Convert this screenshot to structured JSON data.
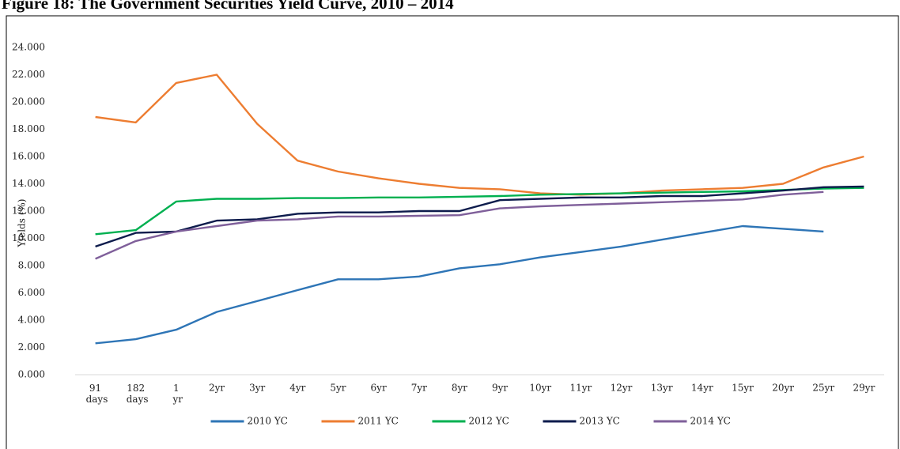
{
  "chart_data": {
    "type": "line",
    "title": "Figure 18: The Government Securities Yield Curve, 2010 – 2014",
    "y_label": "Yields (%)",
    "categories": [
      "91 days",
      "182 days",
      "1 yr",
      "2yr",
      "3yr",
      "4yr",
      "5yr",
      "6yr",
      "7yr",
      "8yr",
      "9yr",
      "10yr",
      "11yr",
      "12yr",
      "13yr",
      "14yr",
      "15yr",
      "20yr",
      "25yr",
      "29yr"
    ],
    "series": [
      {
        "name": "2010 YC",
        "color": "#2e75b6",
        "values": [
          2.3,
          2.6,
          3.3,
          4.6,
          5.4,
          6.2,
          7.0,
          7.0,
          7.2,
          7.8,
          8.1,
          8.6,
          9.0,
          9.4,
          9.9,
          10.4,
          10.9,
          10.7,
          10.5,
          null
        ]
      },
      {
        "name": "2011 YC",
        "color": "#ed7d31",
        "values": [
          18.9,
          18.5,
          21.4,
          22.0,
          18.4,
          15.7,
          14.9,
          14.4,
          14.0,
          13.7,
          13.6,
          13.3,
          13.2,
          13.3,
          13.5,
          13.6,
          13.7,
          14.0,
          15.2,
          16.0
        ]
      },
      {
        "name": "2012 YC",
        "color": "#00b050",
        "values": [
          10.3,
          10.6,
          12.7,
          12.9,
          12.9,
          12.95,
          12.95,
          13.0,
          13.0,
          13.05,
          13.1,
          13.2,
          13.25,
          13.3,
          13.35,
          13.4,
          13.45,
          13.55,
          13.65,
          13.7
        ]
      },
      {
        "name": "2013 YC",
        "color": "#0d1b4c",
        "values": [
          9.4,
          10.4,
          10.5,
          11.3,
          11.4,
          11.8,
          11.9,
          11.9,
          12.0,
          12.0,
          12.8,
          12.9,
          13.0,
          13.0,
          13.1,
          13.1,
          13.3,
          13.5,
          13.75,
          13.8
        ]
      },
      {
        "name": "2014 YC",
        "color": "#7f5f9a",
        "values": [
          8.5,
          9.8,
          10.5,
          10.9,
          11.3,
          11.4,
          11.6,
          11.6,
          11.65,
          11.7,
          12.2,
          12.35,
          12.45,
          12.55,
          12.65,
          12.75,
          12.85,
          13.2,
          13.4,
          null
        ]
      }
    ],
    "ylim": [
      0,
      24
    ],
    "yticks": [
      {
        "value": 0,
        "label": "0.000"
      },
      {
        "value": 2,
        "label": "2.000"
      },
      {
        "value": 4,
        "label": "4.000"
      },
      {
        "value": 6,
        "label": "6.000"
      },
      {
        "value": 8,
        "label": "8.000"
      },
      {
        "value": 10,
        "label": "10.000"
      },
      {
        "value": 12,
        "label": "12.000"
      },
      {
        "value": 14,
        "label": "14.000"
      },
      {
        "value": 16,
        "label": "16.000"
      },
      {
        "value": 18,
        "label": "18.000"
      },
      {
        "value": 20,
        "label": "20.000"
      },
      {
        "value": 22,
        "label": "22.000"
      },
      {
        "value": 24,
        "label": "24.000"
      }
    ],
    "grid": false,
    "legend": "bottom"
  }
}
